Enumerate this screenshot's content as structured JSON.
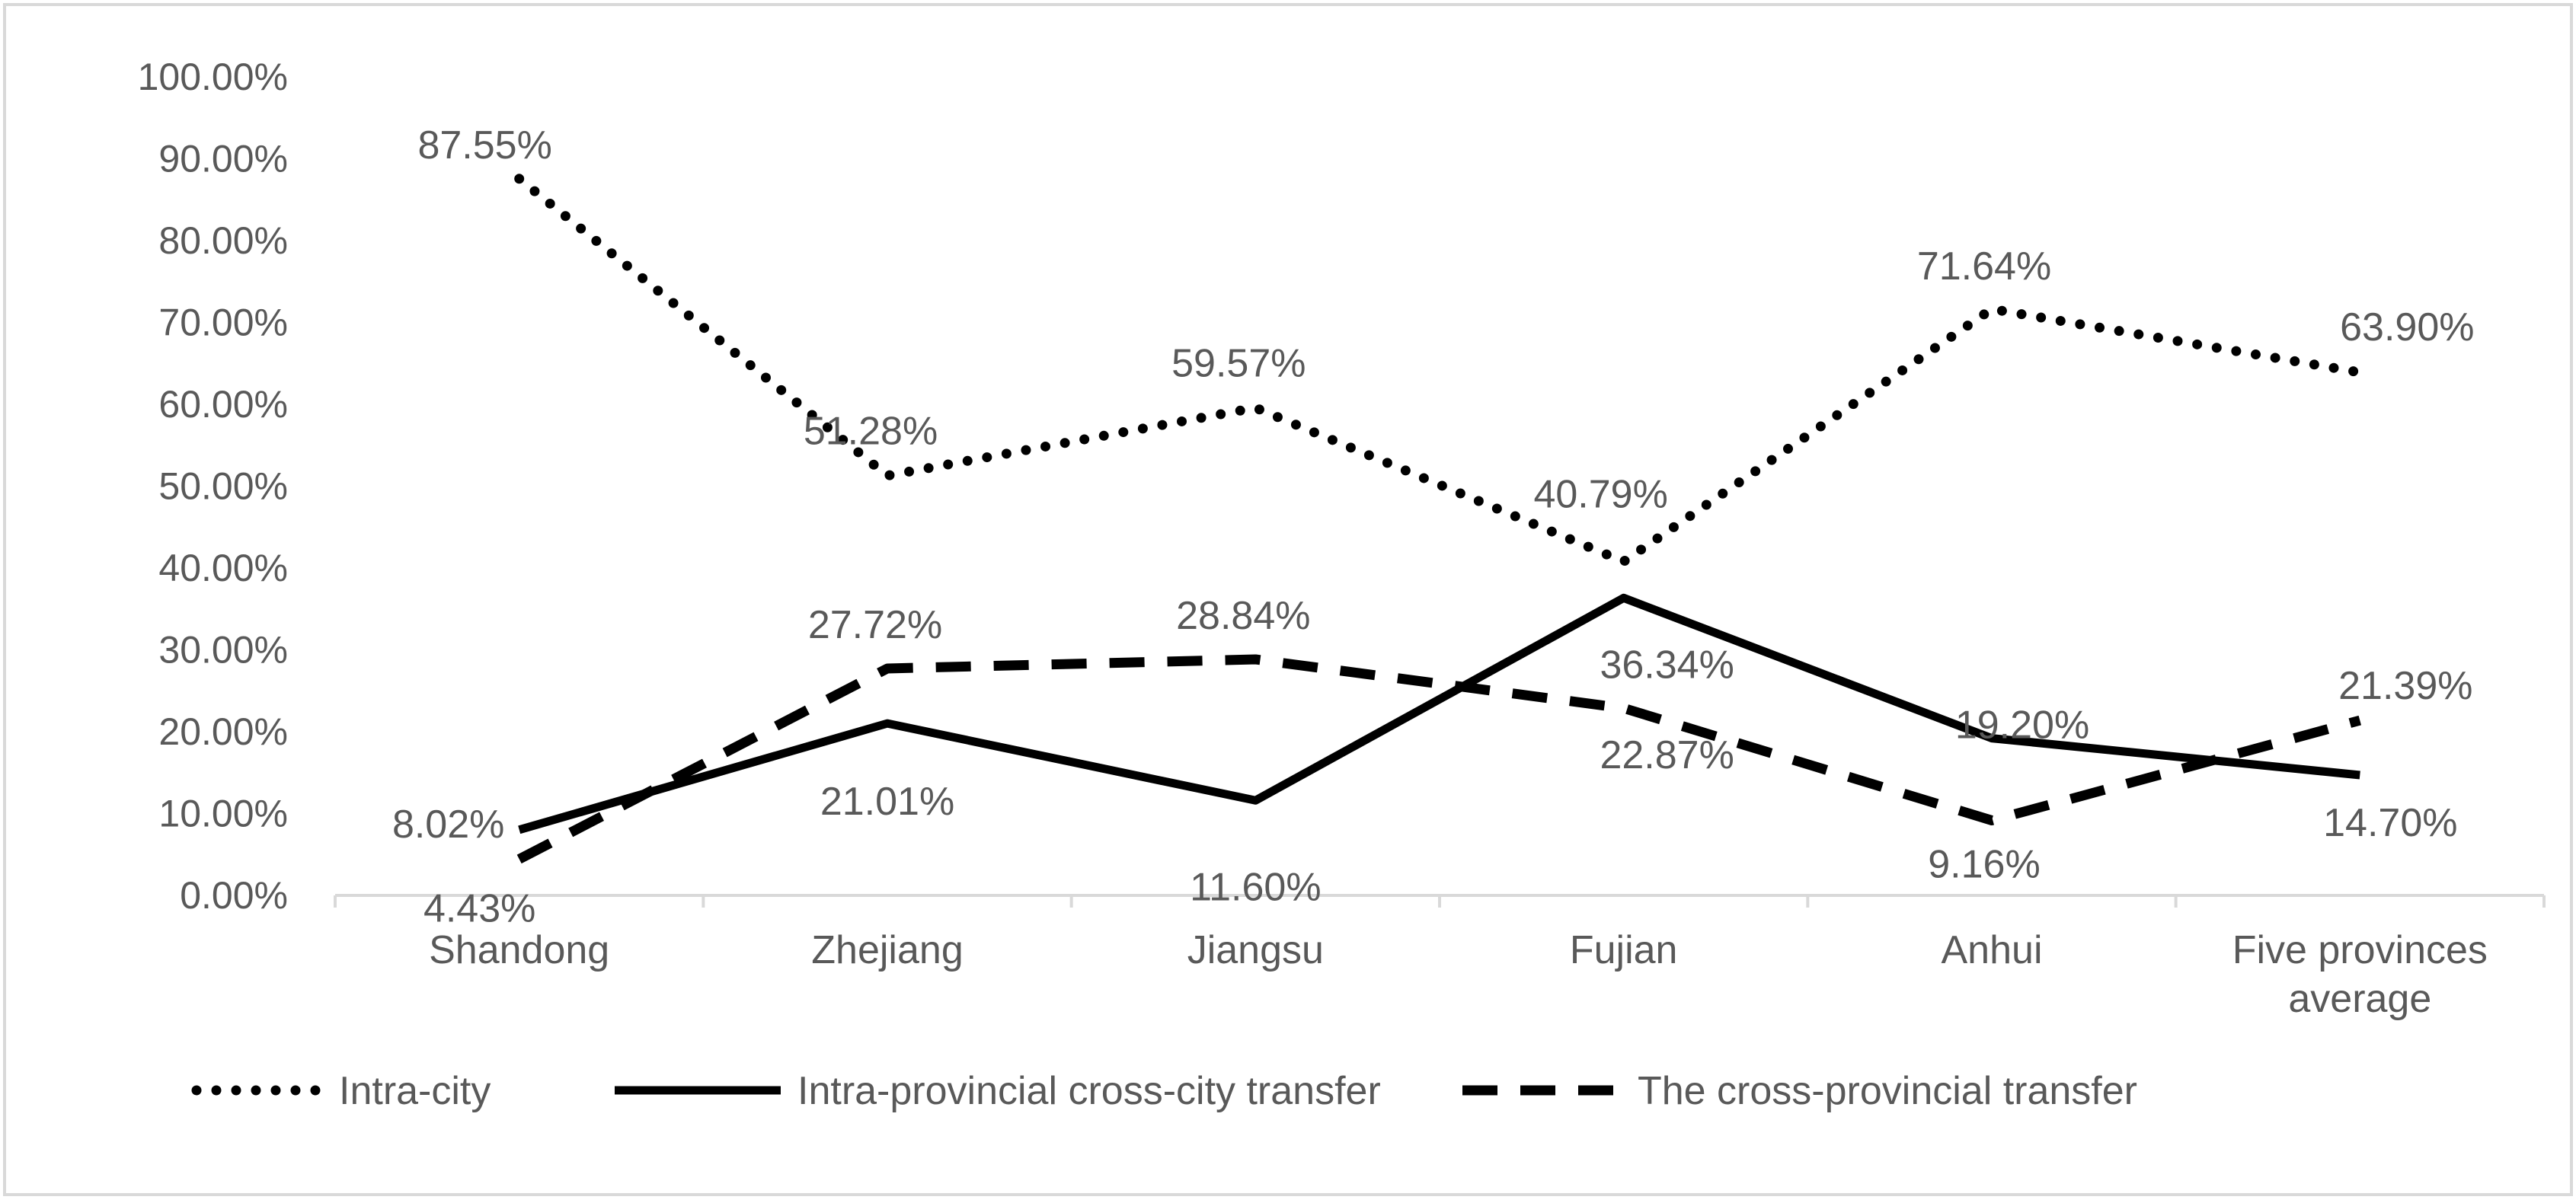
{
  "chart_data": {
    "type": "line",
    "categories": [
      "Shandong",
      "Zhejiang",
      "Jiangsu",
      "Fujian",
      "Anhui",
      "Five provinces average"
    ],
    "category_lines": [
      [
        "Shandong"
      ],
      [
        "Zhejiang"
      ],
      [
        "Jiangsu"
      ],
      [
        "Fujian"
      ],
      [
        "Anhui"
      ],
      [
        "Five provinces",
        "average"
      ]
    ],
    "ylim": [
      0,
      100
    ],
    "y_ticks": [
      0,
      10,
      20,
      30,
      40,
      50,
      60,
      70,
      80,
      90,
      100
    ],
    "y_tick_labels": [
      "0.00%",
      "10.00%",
      "20.00%",
      "30.00%",
      "40.00%",
      "50.00%",
      "60.00%",
      "70.00%",
      "80.00%",
      "90.00%",
      "100.00%"
    ],
    "grid": false,
    "legend_position": "bottom",
    "series": [
      {
        "name": "Intra-city",
        "style": "dotted",
        "color": "#000000",
        "values": [
          87.55,
          51.28,
          59.57,
          40.79,
          71.64,
          63.9
        ],
        "labels": [
          "87.55%",
          "51.28%",
          "59.57%",
          "40.79%",
          "71.64%",
          "63.90%"
        ]
      },
      {
        "name": "Intra-provincial cross-city transfer",
        "style": "solid",
        "color": "#000000",
        "values": [
          8.02,
          21.01,
          11.6,
          36.34,
          19.2,
          14.7
        ],
        "labels": [
          "8.02%",
          "21.01%",
          "11.60%",
          "36.34%",
          "19.20%",
          "14.70%"
        ]
      },
      {
        "name": "The cross-provincial transfer",
        "style": "dashed",
        "color": "#000000",
        "values": [
          4.43,
          27.72,
          28.84,
          22.87,
          9.16,
          21.39
        ],
        "labels": [
          "4.43%",
          "27.72%",
          "28.84%",
          "22.87%",
          "9.16%",
          "21.39%"
        ]
      }
    ]
  }
}
